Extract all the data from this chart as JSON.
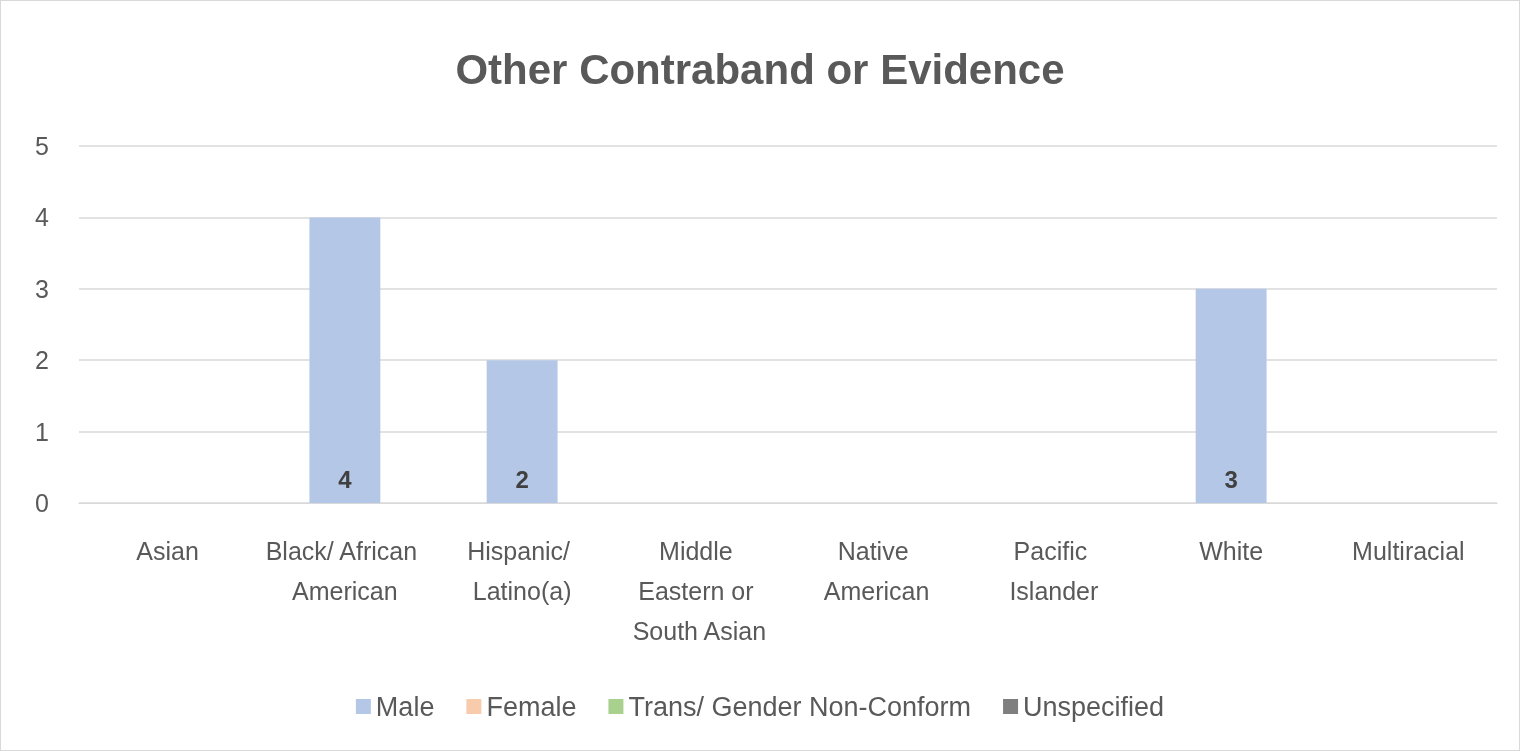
{
  "chart_data": {
    "type": "bar",
    "title": "Other Contraband or Evidence",
    "categories": [
      "Asian",
      "Black/ African American",
      "Hispanic/ Latino(a)",
      "Middle Eastern or South Asian",
      "Native American",
      "Pacific Islander",
      "White",
      "Multiracial"
    ],
    "series": [
      {
        "name": "Male",
        "color": "#b4c7e7",
        "values": [
          0,
          4,
          2,
          0,
          0,
          0,
          3,
          0
        ],
        "value_labels": [
          null,
          "4",
          "2",
          null,
          null,
          null,
          "3",
          null
        ]
      },
      {
        "name": "Female",
        "color": "#f8cbad",
        "values": [
          0,
          0,
          0,
          0,
          0,
          0,
          0,
          0
        ]
      },
      {
        "name": "Trans/ Gender Non-Conform",
        "color": "#a9d18e",
        "values": [
          0,
          0,
          0,
          0,
          0,
          0,
          0,
          0
        ]
      },
      {
        "name": "Unspecified",
        "color": "#7f7f7f",
        "values": [
          0,
          0,
          0,
          0,
          0,
          0,
          0,
          0
        ]
      }
    ],
    "stacked": true,
    "ylim": [
      0,
      5
    ],
    "yticks": [
      0,
      1,
      2,
      3,
      4,
      5
    ],
    "grid": true,
    "legend": "bottom"
  }
}
